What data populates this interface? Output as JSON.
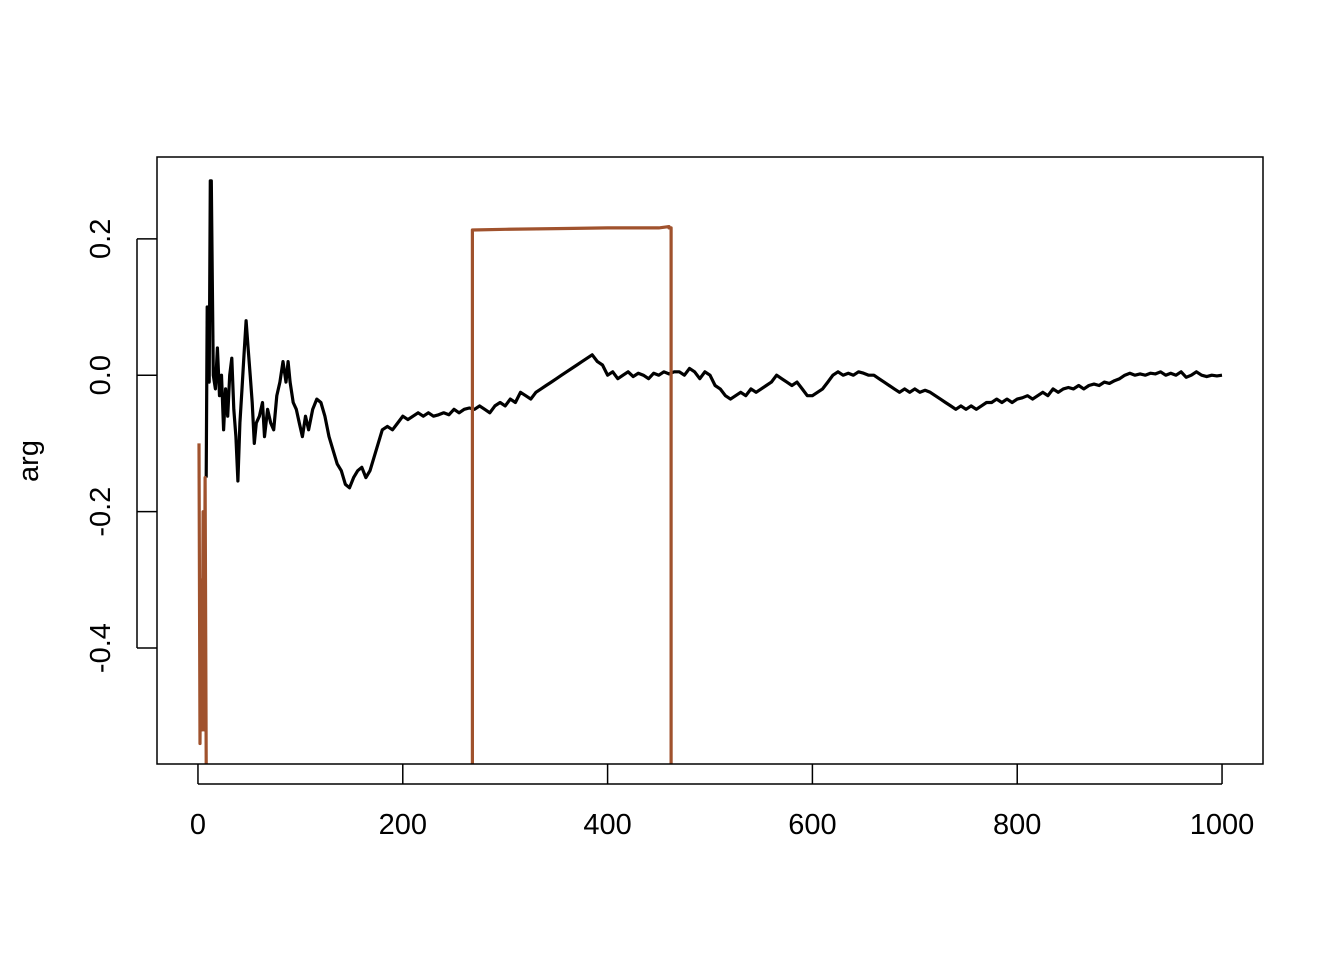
{
  "chart_data": {
    "type": "line",
    "title": "",
    "xlabel": "",
    "ylabel": "arg",
    "xlim": [
      -40,
      1040
    ],
    "ylim": [
      -0.57,
      0.32
    ],
    "grid": false,
    "legend": "none",
    "x_ticks": [
      {
        "value": 0,
        "label": "0"
      },
      {
        "value": 200,
        "label": "200"
      },
      {
        "value": 400,
        "label": "400"
      },
      {
        "value": 600,
        "label": "600"
      },
      {
        "value": 800,
        "label": "800"
      },
      {
        "value": 1000,
        "label": "1000"
      }
    ],
    "y_ticks": [
      {
        "value": -0.4,
        "label": "-0.4"
      },
      {
        "value": -0.2,
        "label": "-0.2"
      },
      {
        "value": 0.0,
        "label": "0.0"
      },
      {
        "value": 0.2,
        "label": "0.2"
      }
    ],
    "series": [
      {
        "color": "#000000",
        "points": [
          [
            8,
            -0.15
          ],
          [
            9,
            0.1
          ],
          [
            10,
            0.03
          ],
          [
            11,
            -0.01
          ],
          [
            12,
            0.285
          ],
          [
            13,
            0.285
          ],
          [
            14,
            0.14
          ],
          [
            15,
            0.0
          ],
          [
            17,
            -0.02
          ],
          [
            19,
            0.04
          ],
          [
            21,
            -0.03
          ],
          [
            23,
            0.0
          ],
          [
            25,
            -0.08
          ],
          [
            27,
            -0.02
          ],
          [
            29,
            -0.06
          ],
          [
            31,
            0.0
          ],
          [
            33,
            0.025
          ],
          [
            35,
            -0.05
          ],
          [
            37,
            -0.09
          ],
          [
            39,
            -0.155
          ],
          [
            41,
            -0.07
          ],
          [
            43,
            -0.02
          ],
          [
            45,
            0.03
          ],
          [
            47,
            0.08
          ],
          [
            49,
            0.04
          ],
          [
            51,
            0.0
          ],
          [
            53,
            -0.04
          ],
          [
            55,
            -0.1
          ],
          [
            57,
            -0.07
          ],
          [
            60,
            -0.06
          ],
          [
            63,
            -0.04
          ],
          [
            65,
            -0.09
          ],
          [
            68,
            -0.05
          ],
          [
            71,
            -0.07
          ],
          [
            74,
            -0.08
          ],
          [
            77,
            -0.03
          ],
          [
            80,
            -0.01
          ],
          [
            83,
            0.02
          ],
          [
            86,
            -0.01
          ],
          [
            88,
            0.02
          ],
          [
            90,
            -0.01
          ],
          [
            93,
            -0.04
          ],
          [
            96,
            -0.05
          ],
          [
            99,
            -0.07
          ],
          [
            102,
            -0.09
          ],
          [
            105,
            -0.06
          ],
          [
            108,
            -0.08
          ],
          [
            112,
            -0.05
          ],
          [
            116,
            -0.035
          ],
          [
            120,
            -0.04
          ],
          [
            124,
            -0.06
          ],
          [
            128,
            -0.09
          ],
          [
            132,
            -0.11
          ],
          [
            136,
            -0.13
          ],
          [
            140,
            -0.14
          ],
          [
            144,
            -0.16
          ],
          [
            148,
            -0.165
          ],
          [
            152,
            -0.15
          ],
          [
            156,
            -0.14
          ],
          [
            160,
            -0.135
          ],
          [
            164,
            -0.15
          ],
          [
            168,
            -0.14
          ],
          [
            172,
            -0.12
          ],
          [
            176,
            -0.1
          ],
          [
            180,
            -0.08
          ],
          [
            185,
            -0.075
          ],
          [
            190,
            -0.08
          ],
          [
            195,
            -0.07
          ],
          [
            200,
            -0.06
          ],
          [
            205,
            -0.065
          ],
          [
            210,
            -0.06
          ],
          [
            215,
            -0.055
          ],
          [
            220,
            -0.06
          ],
          [
            225,
            -0.055
          ],
          [
            230,
            -0.06
          ],
          [
            235,
            -0.058
          ],
          [
            240,
            -0.055
          ],
          [
            245,
            -0.058
          ],
          [
            250,
            -0.05
          ],
          [
            255,
            -0.055
          ],
          [
            260,
            -0.05
          ],
          [
            265,
            -0.048
          ],
          [
            270,
            -0.05
          ],
          [
            275,
            -0.045
          ],
          [
            280,
            -0.05
          ],
          [
            285,
            -0.055
          ],
          [
            290,
            -0.045
          ],
          [
            295,
            -0.04
          ],
          [
            300,
            -0.045
          ],
          [
            305,
            -0.035
          ],
          [
            310,
            -0.04
          ],
          [
            315,
            -0.025
          ],
          [
            320,
            -0.03
          ],
          [
            325,
            -0.035
          ],
          [
            330,
            -0.025
          ],
          [
            335,
            -0.02
          ],
          [
            340,
            -0.015
          ],
          [
            345,
            -0.01
          ],
          [
            350,
            -0.005
          ],
          [
            355,
            0.0
          ],
          [
            360,
            0.005
          ],
          [
            365,
            0.01
          ],
          [
            370,
            0.015
          ],
          [
            375,
            0.02
          ],
          [
            380,
            0.025
          ],
          [
            385,
            0.03
          ],
          [
            390,
            0.02
          ],
          [
            395,
            0.015
          ],
          [
            400,
            0.0
          ],
          [
            405,
            0.005
          ],
          [
            410,
            -0.005
          ],
          [
            415,
            0.0
          ],
          [
            420,
            0.005
          ],
          [
            425,
            -0.002
          ],
          [
            430,
            0.003
          ],
          [
            435,
            0.0
          ],
          [
            440,
            -0.005
          ],
          [
            445,
            0.003
          ],
          [
            450,
            0.0
          ],
          [
            455,
            0.005
          ],
          [
            460,
            0.002
          ],
          [
            465,
            0.005
          ],
          [
            470,
            0.005
          ],
          [
            475,
            0.0
          ],
          [
            480,
            0.01
          ],
          [
            485,
            0.005
          ],
          [
            490,
            -0.005
          ],
          [
            495,
            0.005
          ],
          [
            500,
            0.0
          ],
          [
            505,
            -0.015
          ],
          [
            510,
            -0.02
          ],
          [
            515,
            -0.03
          ],
          [
            520,
            -0.035
          ],
          [
            525,
            -0.03
          ],
          [
            530,
            -0.025
          ],
          [
            535,
            -0.03
          ],
          [
            540,
            -0.02
          ],
          [
            545,
            -0.025
          ],
          [
            550,
            -0.02
          ],
          [
            555,
            -0.015
          ],
          [
            560,
            -0.01
          ],
          [
            565,
            0.0
          ],
          [
            570,
            -0.005
          ],
          [
            575,
            -0.01
          ],
          [
            580,
            -0.015
          ],
          [
            585,
            -0.01
          ],
          [
            590,
            -0.02
          ],
          [
            595,
            -0.03
          ],
          [
            600,
            -0.03
          ],
          [
            605,
            -0.025
          ],
          [
            610,
            -0.02
          ],
          [
            615,
            -0.01
          ],
          [
            620,
            0.0
          ],
          [
            625,
            0.005
          ],
          [
            630,
            0.0
          ],
          [
            635,
            0.003
          ],
          [
            640,
            0.0
          ],
          [
            645,
            0.005
          ],
          [
            650,
            0.003
          ],
          [
            655,
            0.0
          ],
          [
            660,
            0.0
          ],
          [
            665,
            -0.005
          ],
          [
            670,
            -0.01
          ],
          [
            675,
            -0.015
          ],
          [
            680,
            -0.02
          ],
          [
            685,
            -0.025
          ],
          [
            690,
            -0.02
          ],
          [
            695,
            -0.025
          ],
          [
            700,
            -0.02
          ],
          [
            705,
            -0.025
          ],
          [
            710,
            -0.022
          ],
          [
            715,
            -0.025
          ],
          [
            720,
            -0.03
          ],
          [
            725,
            -0.035
          ],
          [
            730,
            -0.04
          ],
          [
            735,
            -0.045
          ],
          [
            740,
            -0.05
          ],
          [
            745,
            -0.045
          ],
          [
            750,
            -0.05
          ],
          [
            755,
            -0.045
          ],
          [
            760,
            -0.05
          ],
          [
            765,
            -0.045
          ],
          [
            770,
            -0.04
          ],
          [
            775,
            -0.04
          ],
          [
            780,
            -0.035
          ],
          [
            785,
            -0.04
          ],
          [
            790,
            -0.035
          ],
          [
            795,
            -0.04
          ],
          [
            800,
            -0.035
          ],
          [
            805,
            -0.033
          ],
          [
            810,
            -0.03
          ],
          [
            815,
            -0.035
          ],
          [
            820,
            -0.03
          ],
          [
            825,
            -0.025
          ],
          [
            830,
            -0.03
          ],
          [
            835,
            -0.02
          ],
          [
            840,
            -0.025
          ],
          [
            845,
            -0.02
          ],
          [
            850,
            -0.018
          ],
          [
            855,
            -0.02
          ],
          [
            860,
            -0.015
          ],
          [
            865,
            -0.02
          ],
          [
            870,
            -0.015
          ],
          [
            875,
            -0.013
          ],
          [
            880,
            -0.015
          ],
          [
            885,
            -0.01
          ],
          [
            890,
            -0.012
          ],
          [
            895,
            -0.008
          ],
          [
            900,
            -0.005
          ],
          [
            905,
            0.0
          ],
          [
            910,
            0.003
          ],
          [
            915,
            0.0
          ],
          [
            920,
            0.002
          ],
          [
            925,
            0.0
          ],
          [
            930,
            0.003
          ],
          [
            935,
            0.002
          ],
          [
            940,
            0.005
          ],
          [
            945,
            0.0
          ],
          [
            950,
            0.003
          ],
          [
            955,
            0.0
          ],
          [
            960,
            0.005
          ],
          [
            965,
            -0.003
          ],
          [
            970,
            0.0
          ],
          [
            975,
            0.005
          ],
          [
            980,
            0.0
          ],
          [
            985,
            -0.002
          ],
          [
            990,
            0.0
          ],
          [
            995,
            -0.001
          ],
          [
            1000,
            0.0
          ]
        ]
      },
      {
        "color": "#a0522d",
        "points": [
          [
            1,
            -0.1
          ],
          [
            2,
            -0.54
          ],
          [
            3,
            -0.3
          ],
          [
            4,
            -0.52
          ],
          [
            5,
            -0.2
          ],
          [
            6,
            -0.52
          ],
          [
            7,
            -0.15
          ],
          [
            8,
            -0.57
          ],
          [
            8.5,
            -0.57
          ]
        ]
      },
      {
        "color": "#a0522d",
        "points": [
          [
            268,
            -0.57
          ],
          [
            268,
            0.213
          ],
          [
            300,
            0.214
          ],
          [
            350,
            0.215
          ],
          [
            400,
            0.216
          ],
          [
            450,
            0.216
          ],
          [
            460,
            0.218
          ],
          [
            460,
            0.216
          ],
          [
            462,
            0.216
          ],
          [
            462,
            -0.57
          ]
        ]
      }
    ]
  }
}
